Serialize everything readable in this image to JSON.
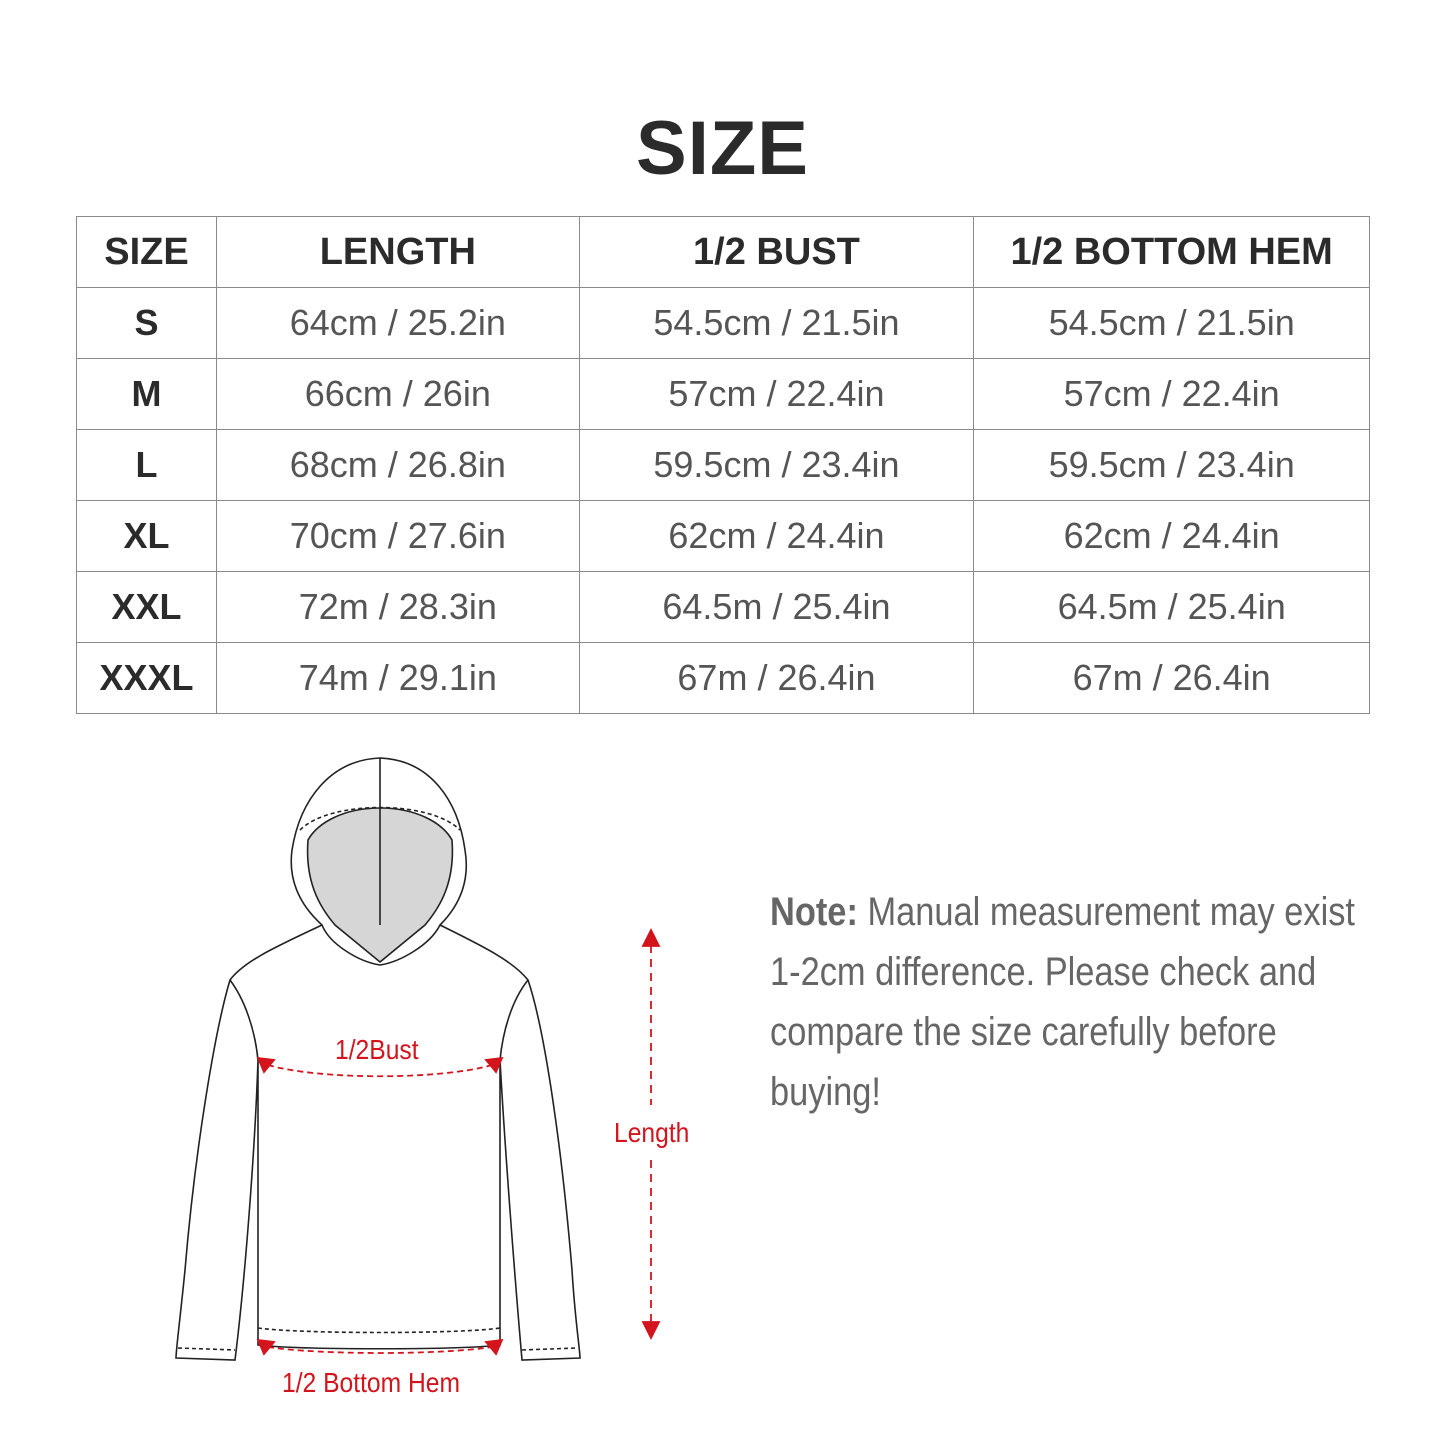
{
  "title": "SIZE",
  "table": {
    "headers": [
      "SIZE",
      "LENGTH",
      "1/2 BUST",
      "1/2 BOTTOM HEM"
    ],
    "rows": [
      [
        "S",
        "64cm / 25.2in",
        "54.5cm / 21.5in",
        "54.5cm / 21.5in"
      ],
      [
        "M",
        "66cm / 26in",
        "57cm / 22.4in",
        "57cm / 22.4in"
      ],
      [
        "L",
        "68cm / 26.8in",
        "59.5cm / 23.4in",
        "59.5cm / 23.4in"
      ],
      [
        "XL",
        "70cm / 27.6in",
        "62cm / 24.4in",
        "62cm / 24.4in"
      ],
      [
        "XXL",
        "72m / 28.3in",
        "64.5m / 25.4in",
        "64.5m / 25.4in"
      ],
      [
        "XXXL",
        "74m / 29.1in",
        "67m / 26.4in",
        "67m / 26.4in"
      ]
    ]
  },
  "diagram": {
    "bust_label": "1/2Bust",
    "hem_label": "1/2 Bottom Hem",
    "length_label": "Length",
    "accent_color": "#d4141c"
  },
  "note": {
    "label": "Note:",
    "text": " Manual measurement may exist 1-2cm difference. Please check and compare the size carefully before buying!"
  }
}
